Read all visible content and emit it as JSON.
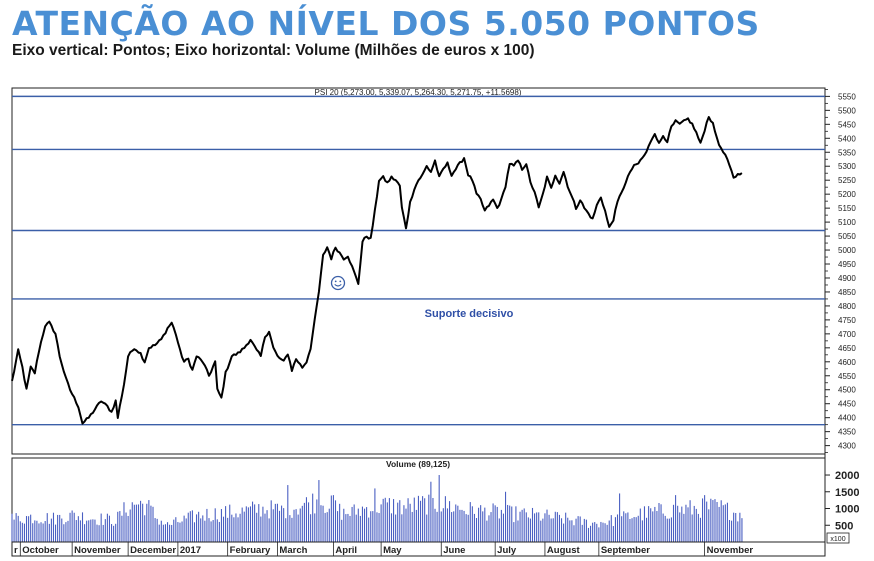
{
  "header": {
    "title": "ATENÇÃO AO NÍVEL DOS 5.050 PONTOS",
    "subtitle": "Eixo vertical: Pontos; Eixo horizontal: Volume (Milhões de euros x 100)"
  },
  "colors": {
    "title": "#4a8fd4",
    "price_line": "#000000",
    "level_lines": "#3b5fa8",
    "volume_bars": "#4a5fc2",
    "annotation_text": "#2f4fa6"
  },
  "chart_data": {
    "type": "line",
    "price_header": "PSI 20 (5,273.00, 5,339.07, 5,264.30, 5,271.75, +11.5698)",
    "volume_header": "Volume (89,125)",
    "volume_unit_label": "x100",
    "annotation": "Suporte decisivo",
    "annotation_icon": "smiley-icon",
    "price_ylim": [
      4270,
      5580
    ],
    "price_ticks": [
      4300,
      4350,
      4400,
      4450,
      4500,
      4550,
      4600,
      4650,
      4700,
      4750,
      4800,
      4850,
      4900,
      4950,
      5000,
      5050,
      5100,
      5150,
      5200,
      5250,
      5300,
      5350,
      5400,
      5450,
      5500,
      5550
    ],
    "horizontal_levels": [
      5550,
      5360,
      5070,
      4825,
      4375
    ],
    "volume_ylim": [
      0,
      2150
    ],
    "volume_ticks": [
      500,
      1000,
      1500,
      2000
    ],
    "x_range": [
      0,
      380
    ],
    "month_labels": [
      {
        "label": "r",
        "x": 0
      },
      {
        "label": "October",
        "x": 4
      },
      {
        "label": "November",
        "x": 29
      },
      {
        "label": "December",
        "x": 56
      },
      {
        "label": "2017",
        "x": 80
      },
      {
        "label": "February",
        "x": 104
      },
      {
        "label": "March",
        "x": 128
      },
      {
        "label": "April",
        "x": 155
      },
      {
        "label": "May",
        "x": 178
      },
      {
        "label": "June",
        "x": 207
      },
      {
        "label": "July",
        "x": 233
      },
      {
        "label": "August",
        "x": 257
      },
      {
        "label": "September",
        "x": 283
      },
      {
        "label": "November",
        "x": 334
      }
    ],
    "price_keypoints": [
      [
        0,
        4530
      ],
      [
        3,
        4640
      ],
      [
        5,
        4580
      ],
      [
        7,
        4500
      ],
      [
        9,
        4580
      ],
      [
        11,
        4560
      ],
      [
        13,
        4640
      ],
      [
        16,
        4730
      ],
      [
        18,
        4740
      ],
      [
        21,
        4700
      ],
      [
        23,
        4620
      ],
      [
        26,
        4540
      ],
      [
        28,
        4500
      ],
      [
        30,
        4470
      ],
      [
        32,
        4440
      ],
      [
        34,
        4380
      ],
      [
        37,
        4400
      ],
      [
        40,
        4430
      ],
      [
        43,
        4460
      ],
      [
        46,
        4440
      ],
      [
        48,
        4420
      ],
      [
        50,
        4460
      ],
      [
        51,
        4400
      ],
      [
        54,
        4520
      ],
      [
        56,
        4620
      ],
      [
        59,
        4650
      ],
      [
        62,
        4630
      ],
      [
        64,
        4600
      ],
      [
        66,
        4650
      ],
      [
        69,
        4660
      ],
      [
        72,
        4680
      ],
      [
        75,
        4720
      ],
      [
        77,
        4740
      ],
      [
        79,
        4700
      ],
      [
        81,
        4640
      ],
      [
        83,
        4600
      ],
      [
        85,
        4610
      ],
      [
        87,
        4570
      ],
      [
        89,
        4620
      ],
      [
        92,
        4600
      ],
      [
        95,
        4550
      ],
      [
        98,
        4600
      ],
      [
        99,
        4500
      ],
      [
        101,
        4470
      ],
      [
        103,
        4560
      ],
      [
        106,
        4620
      ],
      [
        109,
        4630
      ],
      [
        112,
        4650
      ],
      [
        115,
        4680
      ],
      [
        118,
        4640
      ],
      [
        120,
        4620
      ],
      [
        122,
        4690
      ],
      [
        124,
        4710
      ],
      [
        126,
        4650
      ],
      [
        128,
        4620
      ],
      [
        131,
        4600
      ],
      [
        133,
        4630
      ],
      [
        135,
        4570
      ],
      [
        137,
        4610
      ],
      [
        140,
        4580
      ],
      [
        142,
        4600
      ],
      [
        144,
        4650
      ],
      [
        146,
        4750
      ],
      [
        148,
        4850
      ],
      [
        150,
        4980
      ],
      [
        152,
        5010
      ],
      [
        154,
        4970
      ],
      [
        156,
        5010
      ],
      [
        158,
        4990
      ],
      [
        160,
        4970
      ],
      [
        162,
        4980
      ],
      [
        164,
        4940
      ],
      [
        166,
        4900
      ],
      [
        167,
        4880
      ],
      [
        169,
        5030
      ],
      [
        171,
        5050
      ],
      [
        173,
        5040
      ],
      [
        175,
        5140
      ],
      [
        177,
        5250
      ],
      [
        179,
        5260
      ],
      [
        181,
        5240
      ],
      [
        183,
        5260
      ],
      [
        185,
        5250
      ],
      [
        187,
        5230
      ],
      [
        188,
        5150
      ],
      [
        190,
        5080
      ],
      [
        192,
        5170
      ],
      [
        194,
        5220
      ],
      [
        196,
        5250
      ],
      [
        198,
        5270
      ],
      [
        200,
        5300
      ],
      [
        202,
        5280
      ],
      [
        204,
        5320
      ],
      [
        206,
        5260
      ],
      [
        208,
        5290
      ],
      [
        210,
        5310
      ],
      [
        212,
        5270
      ],
      [
        214,
        5290
      ],
      [
        216,
        5310
      ],
      [
        218,
        5330
      ],
      [
        220,
        5270
      ],
      [
        222,
        5250
      ],
      [
        224,
        5200
      ],
      [
        226,
        5180
      ],
      [
        228,
        5140
      ],
      [
        230,
        5160
      ],
      [
        232,
        5180
      ],
      [
        234,
        5150
      ],
      [
        236,
        5180
      ],
      [
        238,
        5230
      ],
      [
        240,
        5310
      ],
      [
        242,
        5300
      ],
      [
        244,
        5320
      ],
      [
        246,
        5290
      ],
      [
        248,
        5310
      ],
      [
        250,
        5240
      ],
      [
        252,
        5210
      ],
      [
        254,
        5150
      ],
      [
        256,
        5200
      ],
      [
        258,
        5260
      ],
      [
        260,
        5220
      ],
      [
        262,
        5270
      ],
      [
        264,
        5240
      ],
      [
        266,
        5280
      ],
      [
        268,
        5230
      ],
      [
        270,
        5190
      ],
      [
        272,
        5150
      ],
      [
        274,
        5180
      ],
      [
        276,
        5150
      ],
      [
        278,
        5130
      ],
      [
        280,
        5110
      ],
      [
        282,
        5160
      ],
      [
        284,
        5190
      ],
      [
        286,
        5140
      ],
      [
        288,
        5080
      ],
      [
        290,
        5110
      ],
      [
        292,
        5170
      ],
      [
        294,
        5210
      ],
      [
        296,
        5240
      ],
      [
        298,
        5280
      ],
      [
        300,
        5300
      ],
      [
        302,
        5310
      ],
      [
        304,
        5330
      ],
      [
        306,
        5350
      ],
      [
        308,
        5390
      ],
      [
        310,
        5420
      ],
      [
        312,
        5380
      ],
      [
        314,
        5410
      ],
      [
        316,
        5390
      ],
      [
        318,
        5440
      ],
      [
        320,
        5460
      ],
      [
        322,
        5450
      ],
      [
        324,
        5460
      ],
      [
        326,
        5470
      ],
      [
        328,
        5450
      ],
      [
        330,
        5420
      ],
      [
        332,
        5380
      ],
      [
        334,
        5430
      ],
      [
        336,
        5480
      ],
      [
        338,
        5450
      ],
      [
        340,
        5400
      ],
      [
        342,
        5360
      ],
      [
        344,
        5340
      ],
      [
        346,
        5300
      ],
      [
        348,
        5260
      ],
      [
        350,
        5270
      ],
      [
        352,
        5280
      ]
    ],
    "volume_keypoints": [
      [
        0,
        700
      ],
      [
        10,
        750
      ],
      [
        20,
        700
      ],
      [
        30,
        800
      ],
      [
        40,
        700
      ],
      [
        50,
        650
      ],
      [
        55,
        1000
      ],
      [
        60,
        1150
      ],
      [
        65,
        1100
      ],
      [
        70,
        700
      ],
      [
        75,
        500
      ],
      [
        80,
        600
      ],
      [
        90,
        800
      ],
      [
        100,
        850
      ],
      [
        110,
        900
      ],
      [
        120,
        1000
      ],
      [
        130,
        950
      ],
      [
        140,
        1100
      ],
      [
        145,
        1200
      ],
      [
        150,
        1200
      ],
      [
        155,
        1050
      ],
      [
        160,
        850
      ],
      [
        165,
        900
      ],
      [
        170,
        1000
      ],
      [
        180,
        1100
      ],
      [
        190,
        1050
      ],
      [
        200,
        1150
      ],
      [
        210,
        1100
      ],
      [
        220,
        950
      ],
      [
        230,
        900
      ],
      [
        240,
        850
      ],
      [
        250,
        800
      ],
      [
        260,
        750
      ],
      [
        270,
        650
      ],
      [
        280,
        550
      ],
      [
        290,
        650
      ],
      [
        300,
        800
      ],
      [
        310,
        900
      ],
      [
        320,
        950
      ],
      [
        330,
        1000
      ],
      [
        340,
        1050
      ],
      [
        350,
        850
      ]
    ],
    "volume_spikes": [
      [
        133,
        1700
      ],
      [
        148,
        1850
      ],
      [
        155,
        1400
      ],
      [
        175,
        1600
      ],
      [
        202,
        1800
      ],
      [
        206,
        2000
      ],
      [
        238,
        1500
      ],
      [
        293,
        1450
      ],
      [
        320,
        1400
      ],
      [
        334,
        1400
      ]
    ]
  }
}
